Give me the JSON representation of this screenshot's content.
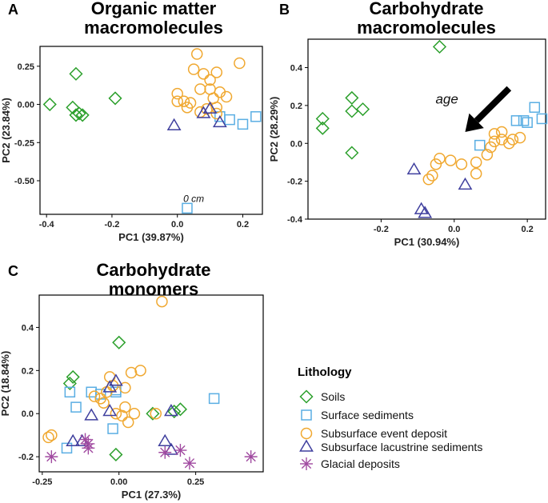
{
  "colors": {
    "soils": "#2ca02c",
    "surface": "#5aaee3",
    "event": "#f0a830",
    "lacustrine": "#3f3f9e",
    "glacial": "#a04aa0"
  },
  "legend": {
    "title": "Lithology",
    "items": [
      {
        "key": "soils",
        "label": "Soils",
        "shape": "diamond"
      },
      {
        "key": "surface",
        "label": "Surface sediments",
        "shape": "square"
      },
      {
        "key": "event",
        "label": "Subsurface event deposit",
        "shape": "circle"
      },
      {
        "key": "lacustrine",
        "label": "Subsurface lacustrine sediments",
        "shape": "triangle"
      },
      {
        "key": "glacial",
        "label": "Glacial deposits",
        "shape": "asterisk"
      }
    ]
  },
  "chart_data": [
    {
      "panel": "A",
      "type": "scatter",
      "title": [
        "Organic matter",
        "macromolecules"
      ],
      "xlabel": "PC1 (39.87%)",
      "ylabel": "PC2 (23.84%)",
      "xlim": [
        -0.42,
        0.26
      ],
      "ylim": [
        -0.72,
        0.38
      ],
      "xticks": [
        -0.4,
        -0.2,
        0.0,
        0.2
      ],
      "xtick_labels": [
        "-0.4",
        "-0.2",
        "0.0",
        "0.2"
      ],
      "yticks": [
        0.25,
        0.0,
        -0.25,
        -0.5
      ],
      "ytick_labels": [
        "0.25",
        "0.00",
        "-0.25",
        "-0.50"
      ],
      "annotations": [
        {
          "text": "0 cm",
          "x": 0.05,
          "y": -0.64
        }
      ],
      "series": [
        {
          "key": "soils",
          "points": [
            [
              -0.39,
              0.0
            ],
            [
              -0.32,
              -0.02
            ],
            [
              -0.31,
              -0.07
            ],
            [
              -0.3,
              -0.06
            ],
            [
              -0.29,
              -0.07
            ],
            [
              -0.31,
              0.2
            ],
            [
              -0.19,
              0.04
            ]
          ]
        },
        {
          "key": "surface",
          "points": [
            [
              0.13,
              -0.08
            ],
            [
              0.16,
              -0.1
            ],
            [
              0.2,
              -0.13
            ],
            [
              0.24,
              -0.08
            ],
            [
              0.03,
              -0.68
            ]
          ]
        },
        {
          "key": "event",
          "points": [
            [
              0.06,
              0.33
            ],
            [
              0.05,
              0.23
            ],
            [
              0.0,
              0.07
            ],
            [
              0.0,
              0.02
            ],
            [
              0.02,
              0.02
            ],
            [
              0.03,
              -0.02
            ],
            [
              0.04,
              0.01
            ],
            [
              0.07,
              0.1
            ],
            [
              0.08,
              0.2
            ],
            [
              0.1,
              0.16
            ],
            [
              0.12,
              0.21
            ],
            [
              0.1,
              0.1
            ],
            [
              0.13,
              0.08
            ],
            [
              0.11,
              0.04
            ],
            [
              0.12,
              -0.02
            ],
            [
              0.15,
              0.05
            ],
            [
              0.19,
              0.27
            ],
            [
              0.07,
              -0.05
            ],
            [
              0.09,
              -0.03
            ],
            [
              0.12,
              -0.06
            ]
          ]
        },
        {
          "key": "lacustrine",
          "points": [
            [
              -0.01,
              -0.14
            ],
            [
              0.08,
              -0.06
            ],
            [
              0.1,
              -0.03
            ],
            [
              0.13,
              -0.12
            ]
          ]
        }
      ]
    },
    {
      "panel": "B",
      "type": "scatter",
      "title": [
        "Carbohydrate",
        "macromolecules"
      ],
      "xlabel": "PC1 (30.94%)",
      "ylabel": "PC2 (28.29%)",
      "xlim": [
        -0.4,
        0.25
      ],
      "ylim": [
        -0.4,
        0.55
      ],
      "xticks": [
        -0.2,
        0.0,
        0.2
      ],
      "xtick_labels": [
        "-0.2",
        "0.0",
        "0.2"
      ],
      "yticks": [
        0.4,
        0.2,
        0.0,
        -0.2,
        -0.4
      ],
      "ytick_labels": [
        "0.4",
        "0.2",
        "0.0",
        "-0.2",
        "-0.4"
      ],
      "annotations": [
        {
          "text": "age",
          "x": -0.02,
          "y": 0.21
        }
      ],
      "arrow": {
        "from": [
          0.15,
          0.29
        ],
        "to": [
          0.03,
          0.06
        ]
      },
      "series": [
        {
          "key": "soils",
          "points": [
            [
              -0.04,
              0.51
            ],
            [
              -0.28,
              0.24
            ],
            [
              -0.28,
              0.17
            ],
            [
              -0.25,
              0.18
            ],
            [
              -0.36,
              0.13
            ],
            [
              -0.36,
              0.08
            ],
            [
              -0.28,
              -0.05
            ]
          ]
        },
        {
          "key": "surface",
          "points": [
            [
              0.07,
              -0.01
            ],
            [
              0.17,
              0.12
            ],
            [
              0.19,
              0.12
            ],
            [
              0.2,
              0.11
            ],
            [
              0.22,
              0.19
            ],
            [
              0.24,
              0.13
            ]
          ]
        },
        {
          "key": "event",
          "points": [
            [
              -0.04,
              -0.08
            ],
            [
              -0.01,
              -0.09
            ],
            [
              -0.05,
              -0.11
            ],
            [
              -0.06,
              -0.17
            ],
            [
              -0.07,
              -0.19
            ],
            [
              0.02,
              -0.11
            ],
            [
              0.06,
              -0.1
            ],
            [
              0.06,
              -0.16
            ],
            [
              0.09,
              -0.06
            ],
            [
              0.1,
              -0.02
            ],
            [
              0.11,
              0.01
            ],
            [
              0.11,
              0.05
            ],
            [
              0.13,
              0.02
            ],
            [
              0.13,
              0.06
            ],
            [
              0.15,
              0.0
            ],
            [
              0.16,
              0.02
            ],
            [
              0.18,
              0.03
            ]
          ]
        },
        {
          "key": "lacustrine",
          "points": [
            [
              -0.11,
              -0.14
            ],
            [
              -0.09,
              -0.35
            ],
            [
              -0.08,
              -0.37
            ],
            [
              0.03,
              -0.22
            ]
          ]
        }
      ]
    },
    {
      "panel": "C",
      "type": "scatter",
      "title": [
        "Carbohydrate",
        "monomers"
      ],
      "xlabel": "PC1 (27.3%)",
      "ylabel": "PC2 (18.84%)",
      "xlim": [
        -0.26,
        0.47
      ],
      "ylim": [
        -0.27,
        0.55
      ],
      "xticks": [
        -0.25,
        0.0,
        0.25
      ],
      "xtick_labels": [
        "-0.25",
        "0.00",
        "0.25"
      ],
      "yticks": [
        0.4,
        0.2,
        0.0,
        -0.2
      ],
      "ytick_labels": [
        "0.4",
        "0.2",
        "0.0",
        "-0.2"
      ],
      "annotations": [],
      "series": [
        {
          "key": "soils",
          "points": [
            [
              0.0,
              0.33
            ],
            [
              -0.15,
              0.17
            ],
            [
              -0.16,
              0.14
            ],
            [
              0.11,
              0.0
            ],
            [
              0.2,
              0.02
            ],
            [
              0.18,
              0.01
            ],
            [
              -0.01,
              -0.19
            ]
          ]
        },
        {
          "key": "surface",
          "points": [
            [
              -0.16,
              0.1
            ],
            [
              -0.14,
              0.03
            ],
            [
              -0.09,
              0.1
            ],
            [
              -0.06,
              0.09
            ],
            [
              -0.01,
              0.11
            ],
            [
              -0.01,
              0.1
            ],
            [
              -0.02,
              -0.07
            ],
            [
              -0.17,
              -0.16
            ],
            [
              0.31,
              0.07
            ]
          ]
        },
        {
          "key": "event",
          "points": [
            [
              0.14,
              0.52
            ],
            [
              -0.22,
              -0.1
            ],
            [
              -0.23,
              -0.11
            ],
            [
              -0.08,
              0.08
            ],
            [
              -0.06,
              0.07
            ],
            [
              -0.05,
              0.05
            ],
            [
              -0.04,
              0.1
            ],
            [
              -0.02,
              0.13
            ],
            [
              0.02,
              0.12
            ],
            [
              -0.03,
              0.17
            ],
            [
              0.04,
              0.19
            ],
            [
              0.07,
              0.2
            ],
            [
              0.02,
              0.03
            ],
            [
              0.01,
              -0.01
            ],
            [
              -0.01,
              0.0
            ],
            [
              0.03,
              -0.04
            ],
            [
              0.05,
              0.0
            ],
            [
              0.12,
              0.0
            ]
          ]
        },
        {
          "key": "lacustrine",
          "points": [
            [
              -0.15,
              -0.13
            ],
            [
              -0.12,
              -0.13
            ],
            [
              -0.09,
              -0.01
            ],
            [
              -0.03,
              0.12
            ],
            [
              -0.01,
              0.15
            ],
            [
              -0.03,
              0.01
            ],
            [
              0.17,
              0.01
            ],
            [
              0.15,
              -0.13
            ],
            [
              0.17,
              -0.17
            ]
          ]
        },
        {
          "key": "glacial",
          "points": [
            [
              -0.22,
              -0.2
            ],
            [
              -0.11,
              -0.12
            ],
            [
              -0.1,
              -0.14
            ],
            [
              -0.1,
              -0.16
            ],
            [
              0.15,
              -0.18
            ],
            [
              0.2,
              -0.17
            ],
            [
              0.23,
              -0.23
            ],
            [
              0.43,
              -0.2
            ]
          ]
        }
      ]
    }
  ]
}
